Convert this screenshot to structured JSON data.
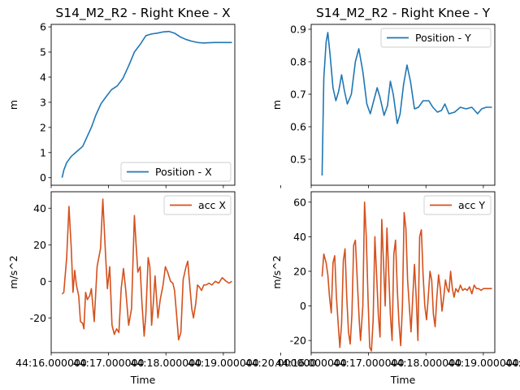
{
  "figure": {
    "shared_x_ticks": [
      "44:16.000000",
      "44:17.000000",
      "44:18.000000",
      "44:19.000000",
      "44:20.000000"
    ],
    "x_label": "Time"
  },
  "chart_data": [
    {
      "type": "line",
      "title": "S14_M2_R2 - Right Knee - X",
      "xlabel": "",
      "ylabel": "m",
      "ylim": [
        -0.3,
        6.1
      ],
      "yticks": [
        0,
        1,
        2,
        3,
        4,
        5,
        6
      ],
      "legend_position": "lower right",
      "series": [
        {
          "name": "Position - X",
          "color": "#1f77b4",
          "points": [
            [
              0.19,
              0.0
            ],
            [
              0.22,
              0.3
            ],
            [
              0.27,
              0.6
            ],
            [
              0.35,
              0.85
            ],
            [
              0.45,
              1.05
            ],
            [
              0.55,
              1.25
            ],
            [
              0.62,
              1.6
            ],
            [
              0.7,
              2.0
            ],
            [
              0.78,
              2.5
            ],
            [
              0.87,
              2.95
            ],
            [
              0.95,
              3.2
            ],
            [
              1.05,
              3.5
            ],
            [
              1.15,
              3.65
            ],
            [
              1.25,
              3.95
            ],
            [
              1.35,
              4.45
            ],
            [
              1.45,
              5.0
            ],
            [
              1.55,
              5.3
            ],
            [
              1.65,
              5.65
            ],
            [
              1.75,
              5.72
            ],
            [
              1.85,
              5.75
            ],
            [
              1.95,
              5.8
            ],
            [
              2.05,
              5.82
            ],
            [
              2.15,
              5.75
            ],
            [
              2.25,
              5.6
            ],
            [
              2.35,
              5.5
            ],
            [
              2.45,
              5.43
            ],
            [
              2.55,
              5.38
            ],
            [
              2.65,
              5.36
            ],
            [
              2.75,
              5.37
            ],
            [
              2.85,
              5.38
            ],
            [
              2.95,
              5.38
            ],
            [
              3.05,
              5.38
            ],
            [
              3.15,
              5.38
            ]
          ]
        }
      ]
    },
    {
      "type": "line",
      "title": "S14_M2_R2 - Right Knee - Y",
      "xlabel": "",
      "ylabel": "m",
      "ylim": [
        0.42,
        0.915
      ],
      "yticks": [
        0.5,
        0.6,
        0.7,
        0.8,
        0.9
      ],
      "legend_position": "upper right",
      "series": [
        {
          "name": "Position - Y",
          "color": "#1f77b4",
          "points": [
            [
              0.19,
              0.45
            ],
            [
              0.22,
              0.75
            ],
            [
              0.26,
              0.86
            ],
            [
              0.29,
              0.89
            ],
            [
              0.33,
              0.82
            ],
            [
              0.38,
              0.72
            ],
            [
              0.43,
              0.68
            ],
            [
              0.48,
              0.71
            ],
            [
              0.53,
              0.76
            ],
            [
              0.58,
              0.71
            ],
            [
              0.63,
              0.67
            ],
            [
              0.7,
              0.7
            ],
            [
              0.77,
              0.8
            ],
            [
              0.83,
              0.84
            ],
            [
              0.9,
              0.77
            ],
            [
              0.97,
              0.67
            ],
            [
              1.03,
              0.64
            ],
            [
              1.09,
              0.68
            ],
            [
              1.15,
              0.72
            ],
            [
              1.2,
              0.69
            ],
            [
              1.27,
              0.635
            ],
            [
              1.33,
              0.665
            ],
            [
              1.38,
              0.74
            ],
            [
              1.43,
              0.7
            ],
            [
              1.5,
              0.61
            ],
            [
              1.55,
              0.64
            ],
            [
              1.61,
              0.73
            ],
            [
              1.67,
              0.79
            ],
            [
              1.73,
              0.74
            ],
            [
              1.8,
              0.655
            ],
            [
              1.87,
              0.66
            ],
            [
              1.95,
              0.68
            ],
            [
              2.05,
              0.68
            ],
            [
              2.12,
              0.66
            ],
            [
              2.2,
              0.645
            ],
            [
              2.27,
              0.65
            ],
            [
              2.33,
              0.67
            ],
            [
              2.4,
              0.64
            ],
            [
              2.5,
              0.645
            ],
            [
              2.6,
              0.66
            ],
            [
              2.7,
              0.655
            ],
            [
              2.8,
              0.66
            ],
            [
              2.9,
              0.64
            ],
            [
              2.97,
              0.655
            ],
            [
              3.05,
              0.66
            ],
            [
              3.15,
              0.66
            ]
          ]
        }
      ]
    },
    {
      "type": "line",
      "title": "",
      "xlabel": "Time",
      "ylabel": "m/s^2",
      "ylim": [
        -39,
        49
      ],
      "yticks": [
        -20,
        0,
        20,
        40
      ],
      "legend_position": "upper right",
      "series": [
        {
          "name": "acc X",
          "color": "#d4511d",
          "points": [
            [
              0.19,
              -7
            ],
            [
              0.22,
              -6
            ],
            [
              0.27,
              13
            ],
            [
              0.31,
              41
            ],
            [
              0.35,
              18
            ],
            [
              0.38,
              -6
            ],
            [
              0.41,
              6
            ],
            [
              0.44,
              -2
            ],
            [
              0.48,
              -8
            ],
            [
              0.51,
              -22
            ],
            [
              0.55,
              -23
            ],
            [
              0.57,
              -26
            ],
            [
              0.6,
              -6
            ],
            [
              0.63,
              -10
            ],
            [
              0.67,
              -8
            ],
            [
              0.7,
              -4
            ],
            [
              0.75,
              -22
            ],
            [
              0.8,
              8
            ],
            [
              0.86,
              18
            ],
            [
              0.9,
              45
            ],
            [
              0.95,
              13
            ],
            [
              0.98,
              -4
            ],
            [
              1.02,
              8
            ],
            [
              1.06,
              -24
            ],
            [
              1.1,
              -29
            ],
            [
              1.14,
              -26
            ],
            [
              1.18,
              -28
            ],
            [
              1.22,
              -4
            ],
            [
              1.26,
              7
            ],
            [
              1.3,
              -5
            ],
            [
              1.35,
              -24
            ],
            [
              1.4,
              -15
            ],
            [
              1.45,
              36
            ],
            [
              1.48,
              20
            ],
            [
              1.51,
              5
            ],
            [
              1.55,
              8
            ],
            [
              1.58,
              -11
            ],
            [
              1.62,
              -30
            ],
            [
              1.65,
              -18
            ],
            [
              1.69,
              13
            ],
            [
              1.72,
              8
            ],
            [
              1.75,
              -24
            ],
            [
              1.78,
              -12
            ],
            [
              1.81,
              3
            ],
            [
              1.86,
              -20
            ],
            [
              1.9,
              -10
            ],
            [
              1.95,
              -2
            ],
            [
              1.99,
              8
            ],
            [
              2.03,
              5
            ],
            [
              2.08,
              0
            ],
            [
              2.12,
              -1
            ],
            [
              2.15,
              -5
            ],
            [
              2.19,
              -20
            ],
            [
              2.22,
              -32
            ],
            [
              2.26,
              -28
            ],
            [
              2.3,
              1
            ],
            [
              2.35,
              8
            ],
            [
              2.38,
              11
            ],
            [
              2.42,
              -4
            ],
            [
              2.45,
              -15
            ],
            [
              2.48,
              -20
            ],
            [
              2.52,
              -12
            ],
            [
              2.55,
              -2
            ],
            [
              2.58,
              -3
            ],
            [
              2.62,
              -5
            ],
            [
              2.66,
              -2
            ],
            [
              2.7,
              -2
            ],
            [
              2.75,
              -1
            ],
            [
              2.8,
              -2
            ],
            [
              2.86,
              0
            ],
            [
              2.92,
              -1
            ],
            [
              2.98,
              2
            ],
            [
              3.05,
              0
            ],
            [
              3.1,
              -1
            ],
            [
              3.15,
              0
            ]
          ]
        }
      ]
    },
    {
      "type": "line",
      "title": "",
      "xlabel": "Time",
      "ylabel": "m/s^2",
      "ylim": [
        -27,
        66
      ],
      "yticks": [
        -20,
        0,
        20,
        40,
        60
      ],
      "legend_position": "upper right",
      "series": [
        {
          "name": "acc Y",
          "color": "#d4511d",
          "points": [
            [
              0.19,
              17
            ],
            [
              0.22,
              30
            ],
            [
              0.26,
              25
            ],
            [
              0.29,
              18
            ],
            [
              0.32,
              5
            ],
            [
              0.35,
              -4
            ],
            [
              0.38,
              25
            ],
            [
              0.41,
              29
            ],
            [
              0.44,
              5
            ],
            [
              0.47,
              -10
            ],
            [
              0.5,
              -24
            ],
            [
              0.53,
              -10
            ],
            [
              0.56,
              26
            ],
            [
              0.59,
              33
            ],
            [
              0.62,
              5
            ],
            [
              0.65,
              -15
            ],
            [
              0.68,
              -22
            ],
            [
              0.71,
              -5
            ],
            [
              0.74,
              35
            ],
            [
              0.77,
              38
            ],
            [
              0.81,
              10
            ],
            [
              0.84,
              -10
            ],
            [
              0.86,
              -20
            ],
            [
              0.9,
              0
            ],
            [
              0.93,
              60
            ],
            [
              0.96,
              40
            ],
            [
              0.99,
              5
            ],
            [
              1.02,
              -24
            ],
            [
              1.05,
              -26
            ],
            [
              1.08,
              -8
            ],
            [
              1.11,
              40
            ],
            [
              1.14,
              18
            ],
            [
              1.17,
              -5
            ],
            [
              1.2,
              -18
            ],
            [
              1.23,
              50
            ],
            [
              1.26,
              25
            ],
            [
              1.29,
              0
            ],
            [
              1.32,
              45
            ],
            [
              1.35,
              20
            ],
            [
              1.38,
              -5
            ],
            [
              1.41,
              -20
            ],
            [
              1.44,
              30
            ],
            [
              1.47,
              38
            ],
            [
              1.5,
              10
            ],
            [
              1.53,
              -10
            ],
            [
              1.56,
              -23
            ],
            [
              1.59,
              0
            ],
            [
              1.62,
              54
            ],
            [
              1.65,
              45
            ],
            [
              1.68,
              15
            ],
            [
              1.71,
              0
            ],
            [
              1.74,
              -15
            ],
            [
              1.77,
              5
            ],
            [
              1.8,
              24
            ],
            [
              1.83,
              5
            ],
            [
              1.86,
              -20
            ],
            [
              1.89,
              40
            ],
            [
              1.92,
              44
            ],
            [
              1.95,
              18
            ],
            [
              1.98,
              0
            ],
            [
              2.01,
              -8
            ],
            [
              2.04,
              5
            ],
            [
              2.07,
              20
            ],
            [
              2.1,
              15
            ],
            [
              2.13,
              -5
            ],
            [
              2.16,
              -12
            ],
            [
              2.19,
              5
            ],
            [
              2.22,
              18
            ],
            [
              2.25,
              10
            ],
            [
              2.28,
              -3
            ],
            [
              2.31,
              5
            ],
            [
              2.34,
              15
            ],
            [
              2.37,
              10
            ],
            [
              2.4,
              8
            ],
            [
              2.43,
              20
            ],
            [
              2.46,
              10
            ],
            [
              2.49,
              5
            ],
            [
              2.52,
              10
            ],
            [
              2.56,
              8
            ],
            [
              2.6,
              12
            ],
            [
              2.64,
              9
            ],
            [
              2.68,
              10
            ],
            [
              2.72,
              9
            ],
            [
              2.76,
              11
            ],
            [
              2.8,
              7
            ],
            [
              2.84,
              12
            ],
            [
              2.88,
              10
            ],
            [
              2.92,
              10
            ],
            [
              2.96,
              9
            ],
            [
              3.0,
              10
            ],
            [
              3.05,
              10
            ],
            [
              3.1,
              10
            ],
            [
              3.15,
              10
            ]
          ]
        }
      ]
    }
  ]
}
